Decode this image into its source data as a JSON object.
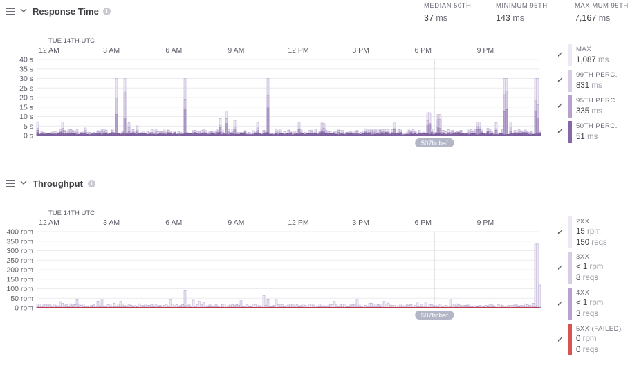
{
  "response_time": {
    "title": "Response Time",
    "stats": [
      {
        "label": "MEDIAN 50TH",
        "value": "37",
        "unit": "ms"
      },
      {
        "label": "MINIMUM 95TH",
        "value": "143",
        "unit": "ms"
      },
      {
        "label": "MAXIMUM 95TH",
        "value": "7,167",
        "unit": "ms"
      }
    ],
    "legend": [
      {
        "name": "MAX",
        "value": "1,087",
        "unit": "ms",
        "color": "#ede8f3"
      },
      {
        "name": "99TH PERC.",
        "value": "831",
        "unit": "ms",
        "color": "#d9cde6"
      },
      {
        "name": "95TH PERC.",
        "value": "335",
        "unit": "ms",
        "color": "#b6a2cd"
      },
      {
        "name": "50TH PERC.",
        "value": "51",
        "unit": "ms",
        "color": "#8767a6"
      }
    ]
  },
  "throughput": {
    "title": "Throughput",
    "legend": [
      {
        "name": "2XX",
        "rate": "15",
        "rate_unit": "rpm",
        "reqs": "150",
        "reqs_unit": "reqs",
        "color": "#ede8f3"
      },
      {
        "name": "3XX",
        "rate": "< 1",
        "rate_unit": "rpm",
        "reqs": "8",
        "reqs_unit": "reqs",
        "color": "#d9cde6"
      },
      {
        "name": "4XX",
        "rate": "< 1",
        "rate_unit": "rpm",
        "reqs": "3",
        "reqs_unit": "reqs",
        "color": "#b6a2cd"
      },
      {
        "name": "5XX (FAILED)",
        "rate": "0",
        "rate_unit": "rpm",
        "reqs": "0",
        "reqs_unit": "reqs",
        "color": "#d9534f"
      }
    ]
  },
  "chart_data": [
    {
      "type": "area",
      "title": "Response Time",
      "date_label": "TUE 14TH UTC",
      "x_ticks": [
        "12 AM",
        "3 AM",
        "6 AM",
        "9 AM",
        "12 PM",
        "3 PM",
        "6 PM",
        "9 PM"
      ],
      "y_ticks": [
        "40 s",
        "35 s",
        "30 s",
        "25 s",
        "20 s",
        "15 s",
        "10 s",
        "5 s",
        "0 s"
      ],
      "ylim": [
        0,
        40
      ],
      "deploy_marker": "507bcbaf",
      "series": [
        {
          "name": "MAX",
          "spikes": [
            [
              3.2,
              30
            ],
            [
              3.6,
              30
            ],
            [
              6.5,
              30
            ],
            [
              10.5,
              30
            ],
            [
              21.9,
              30
            ],
            [
              23.4,
              30
            ],
            [
              20.6,
              7
            ],
            [
              18.2,
              12
            ],
            [
              18.7,
              11
            ],
            [
              8.5,
              13
            ],
            [
              8.2,
              9
            ],
            [
              8.9,
              8
            ],
            [
              12.0,
              7
            ],
            [
              0.6,
              7
            ]
          ],
          "baseline": 2
        },
        {
          "name": "99TH PERC.",
          "baseline": 1.5
        },
        {
          "name": "95TH PERC.",
          "baseline": 1
        },
        {
          "name": "50TH PERC.",
          "baseline": 0.5
        }
      ],
      "grid": true
    },
    {
      "type": "area",
      "title": "Throughput",
      "date_label": "TUE 14TH UTC",
      "x_ticks": [
        "12 AM",
        "3 AM",
        "6 AM",
        "9 AM",
        "12 PM",
        "3 PM",
        "6 PM",
        "9 PM"
      ],
      "y_ticks": [
        "400 rpm",
        "350 rpm",
        "300 rpm",
        "250 rpm",
        "200 rpm",
        "150 rpm",
        "100 rpm",
        "50 rpm",
        "0 rpm"
      ],
      "ylim": [
        0,
        400
      ],
      "deploy_marker": "507bcbaf",
      "series": [
        {
          "name": "2XX",
          "spikes": [
            [
              6.5,
              90
            ],
            [
              6.9,
              40
            ],
            [
              10.3,
              65
            ],
            [
              3.1,
              25
            ],
            [
              15.4,
              25
            ],
            [
              23.4,
              335
            ],
            [
              23.6,
              120
            ]
          ],
          "baseline": 12
        },
        {
          "name": "3XX",
          "baseline": 1
        },
        {
          "name": "4XX",
          "baseline": 1
        },
        {
          "name": "5XX (FAILED)",
          "baseline": 0
        }
      ],
      "grid": true
    }
  ]
}
